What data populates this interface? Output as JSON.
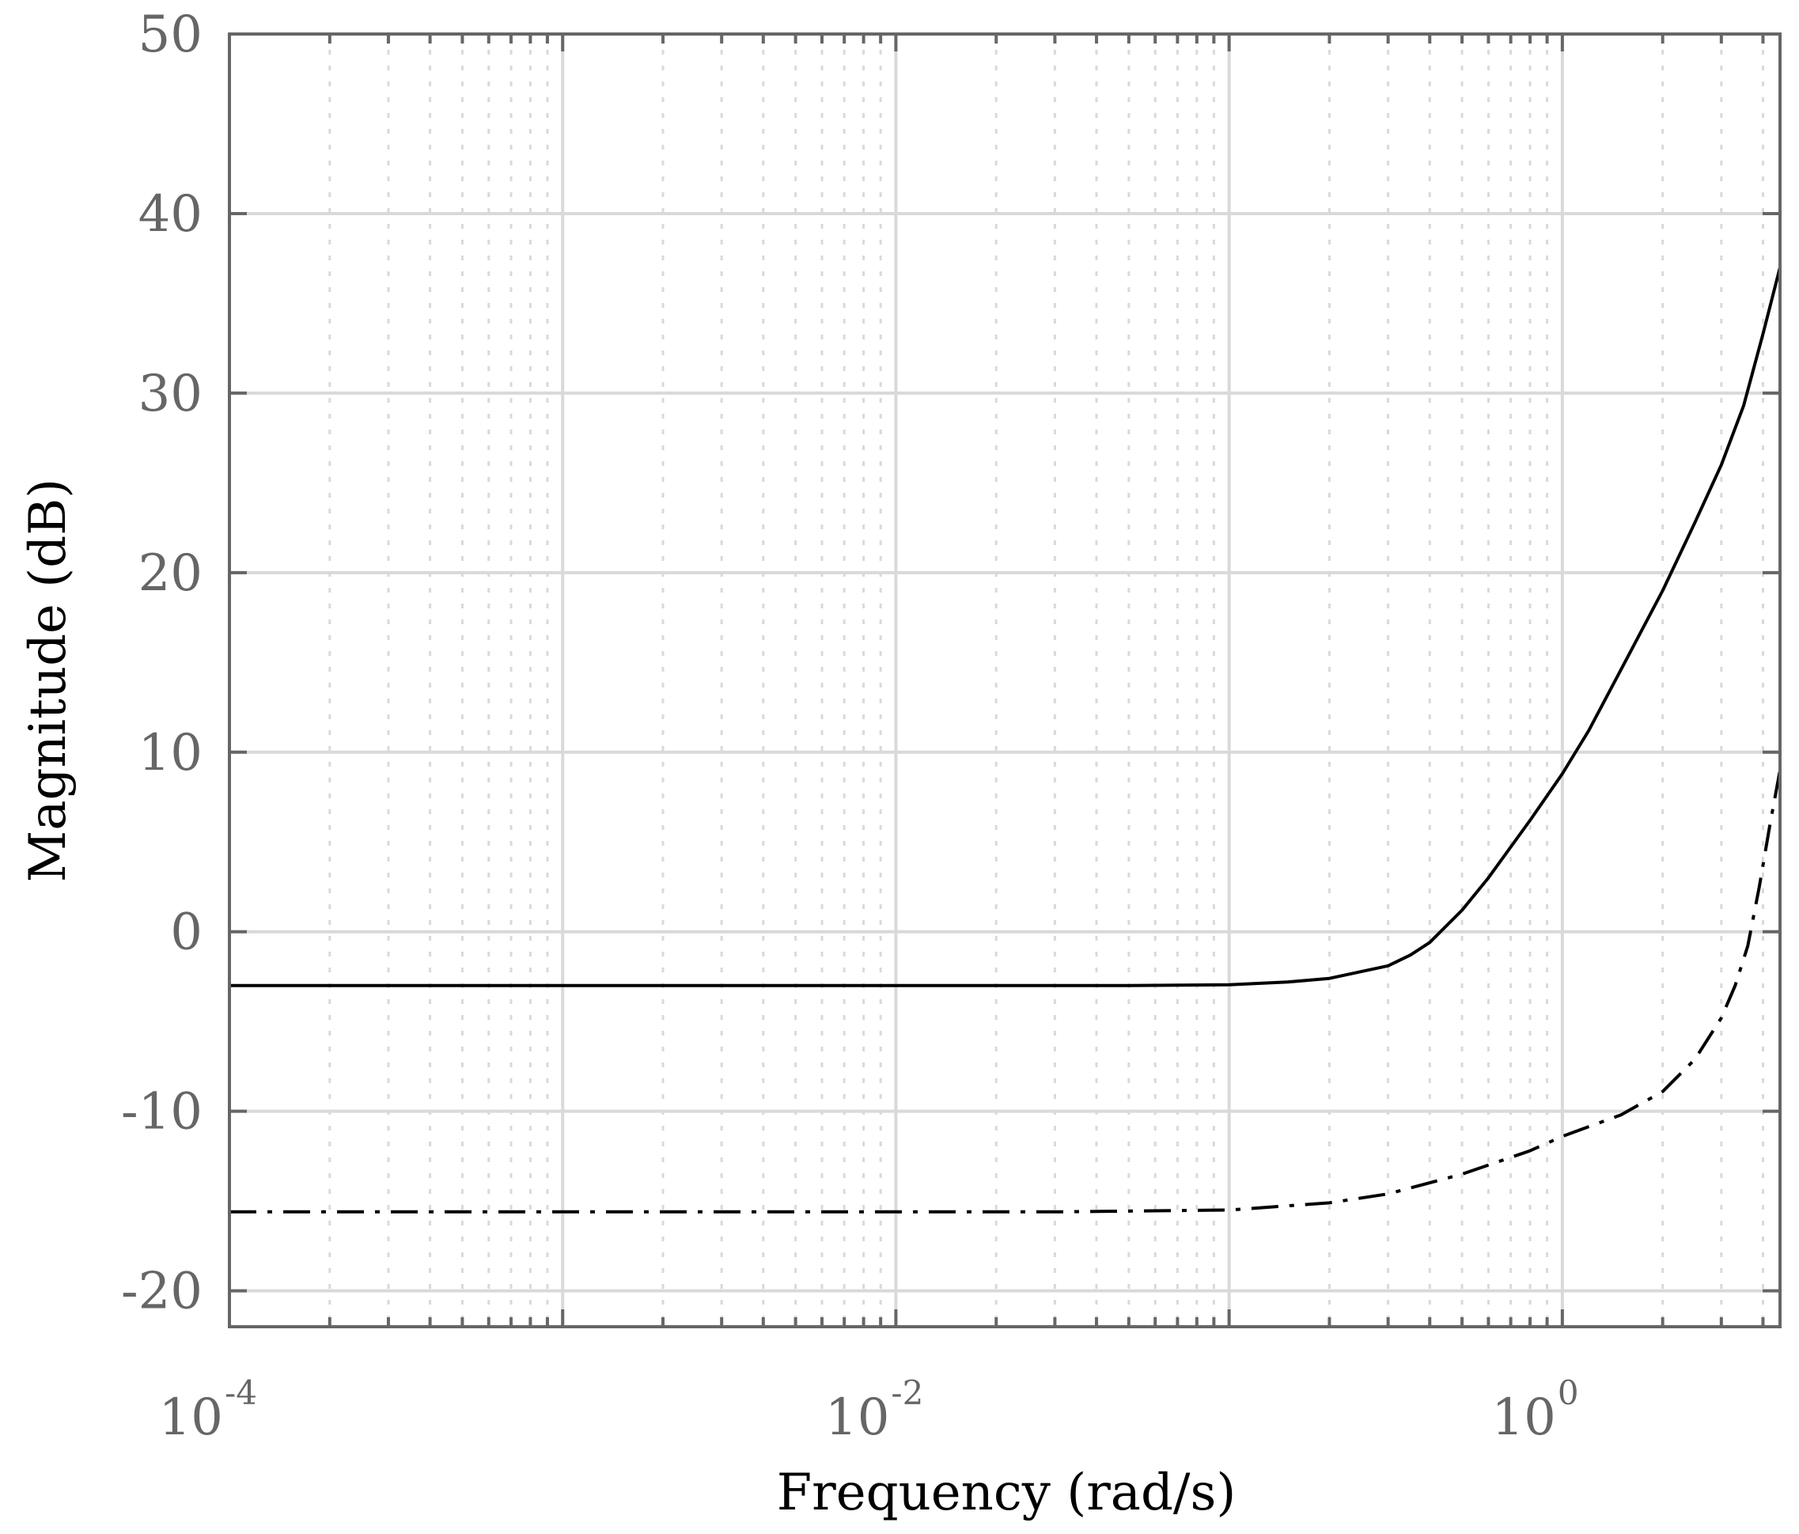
{
  "chart_data": {
    "type": "line",
    "title": "",
    "xlabel": "Frequency  (rad/s)",
    "ylabel": "Magnitude (dB)",
    "x_scale": "log",
    "xlim": [
      0.0001,
      4.5
    ],
    "ylim": [
      -22,
      50
    ],
    "x_ticks": [
      {
        "value": 0.0001,
        "base": "10",
        "exp": "-4"
      },
      {
        "value": 0.01,
        "base": "10",
        "exp": "-2"
      },
      {
        "value": 1,
        "base": "10",
        "exp": "0"
      }
    ],
    "y_ticks": [
      {
        "value": -20,
        "label": "-20"
      },
      {
        "value": -10,
        "label": "-10"
      },
      {
        "value": 0,
        "label": "0"
      },
      {
        "value": 10,
        "label": "10"
      },
      {
        "value": 20,
        "label": "20"
      },
      {
        "value": 30,
        "label": "30"
      },
      {
        "value": 40,
        "label": "40"
      },
      {
        "value": 50,
        "label": "50"
      }
    ],
    "grid": true,
    "minor_grid": true,
    "series": [
      {
        "line_style": "solid",
        "color": "#000000",
        "x": [
          0.0001,
          0.001,
          0.01,
          0.05,
          0.1,
          0.15,
          0.2,
          0.3,
          0.35,
          0.4,
          0.5,
          0.6,
          0.8,
          1.0,
          1.2,
          1.5,
          2.0,
          2.5,
          3.0,
          3.5,
          4.0,
          4.5
        ],
        "y": [
          -3,
          -3,
          -3,
          -3,
          -2.95,
          -2.8,
          -2.6,
          -1.9,
          -1.3,
          -0.6,
          1.2,
          3.0,
          6.2,
          8.8,
          11.2,
          14.6,
          19.0,
          22.8,
          26.0,
          29.3,
          33.3,
          37.0
        ]
      },
      {
        "line_style": "dash-dot",
        "color": "#000000",
        "x": [
          0.0001,
          0.001,
          0.01,
          0.03,
          0.1,
          0.2,
          0.3,
          0.5,
          0.8,
          1.0,
          1.5,
          2.0,
          2.5,
          3.0,
          3.3,
          3.6,
          3.9,
          4.2,
          4.5
        ],
        "y": [
          -15.6,
          -15.6,
          -15.6,
          -15.6,
          -15.5,
          -15.1,
          -14.6,
          -13.5,
          -12.2,
          -11.4,
          -10.2,
          -8.9,
          -7.1,
          -4.8,
          -3.0,
          -0.8,
          2.5,
          6.0,
          9.0
        ]
      }
    ]
  }
}
